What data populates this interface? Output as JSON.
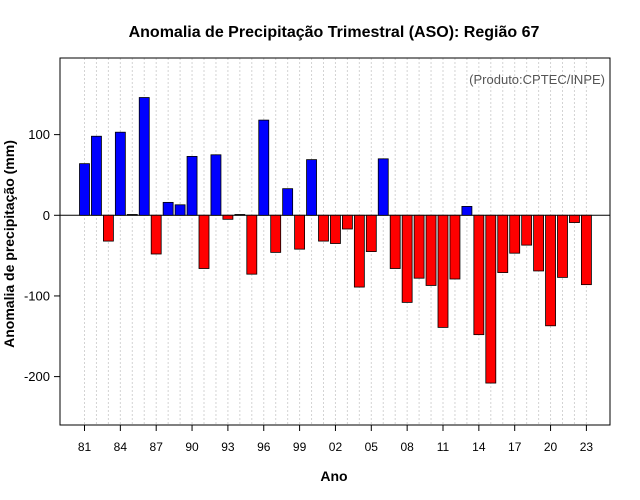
{
  "chart_data": {
    "type": "bar",
    "title": "Anomalia de Precipitação Trimestral (ASO): Região 67",
    "xlabel": "Ano",
    "ylabel": "Anomalia de precipitação (mm)",
    "annotation": "(Produto:CPTEC/INPE)",
    "ylim": [
      -260,
      195
    ],
    "yticks": [
      -200,
      -100,
      0,
      100
    ],
    "ytick_labels": [
      "-200",
      "-100",
      "0",
      "100"
    ],
    "xtick_labels": [
      "81",
      "84",
      "87",
      "90",
      "93",
      "96",
      "99",
      "02",
      "05",
      "08",
      "11",
      "14",
      "17",
      "20",
      "23"
    ],
    "xtick_years": [
      1981,
      1984,
      1987,
      1990,
      1993,
      1996,
      1999,
      2002,
      2005,
      2008,
      2011,
      2014,
      2017,
      2020,
      2023
    ],
    "positive_color": "#0000ff",
    "negative_color": "#ff0000",
    "grid": true,
    "years": [
      1981,
      1982,
      1983,
      1984,
      1985,
      1986,
      1987,
      1988,
      1989,
      1990,
      1991,
      1992,
      1993,
      1994,
      1995,
      1996,
      1997,
      1998,
      1999,
      2000,
      2001,
      2002,
      2003,
      2004,
      2005,
      2006,
      2007,
      2008,
      2009,
      2010,
      2011,
      2012,
      2013,
      2014,
      2015,
      2016,
      2017,
      2018,
      2019,
      2020,
      2021,
      2022,
      2023
    ],
    "values": [
      64,
      98,
      -32,
      103,
      1,
      146,
      -48,
      16,
      13,
      73,
      -66,
      75,
      -5,
      1,
      -73,
      118,
      -46,
      33,
      -42,
      69,
      -32,
      -35,
      -17,
      -89,
      -45,
      70,
      -66,
      -108,
      -78,
      -87,
      -139,
      -79,
      11,
      -148,
      -208,
      -71,
      -47,
      -37,
      -69,
      -137,
      -77,
      -9,
      -86
    ]
  }
}
